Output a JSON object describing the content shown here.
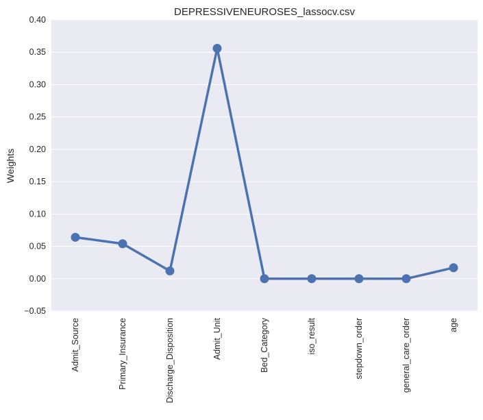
{
  "chart_data": {
    "type": "line",
    "title": "DEPRESSIVENEUROSES_lassocv.csv",
    "xlabel": "",
    "ylabel": "Weights",
    "categories": [
      "Admit_Source",
      "Primary_Insurance",
      "Discharge_Disposition",
      "Admit_Unit",
      "Bed_Category",
      "iso_result",
      "stepdown_order",
      "general_care_order",
      "age"
    ],
    "values": [
      0.064,
      0.054,
      0.012,
      0.356,
      0.0,
      0.0,
      0.0,
      0.0,
      0.017
    ],
    "ylim": [
      -0.05,
      0.4
    ],
    "yticks": [
      "−0.05",
      "0.00",
      "0.05",
      "0.10",
      "0.15",
      "0.20",
      "0.25",
      "0.30",
      "0.35",
      "0.40"
    ],
    "ytick_values": [
      -0.05,
      0.0,
      0.05,
      0.1,
      0.15,
      0.2,
      0.25,
      0.3,
      0.35,
      0.4
    ],
    "grid": true,
    "colors": {
      "background": "#eaeaf2",
      "grid": "#ffffff",
      "line": "#4c72b0"
    }
  }
}
